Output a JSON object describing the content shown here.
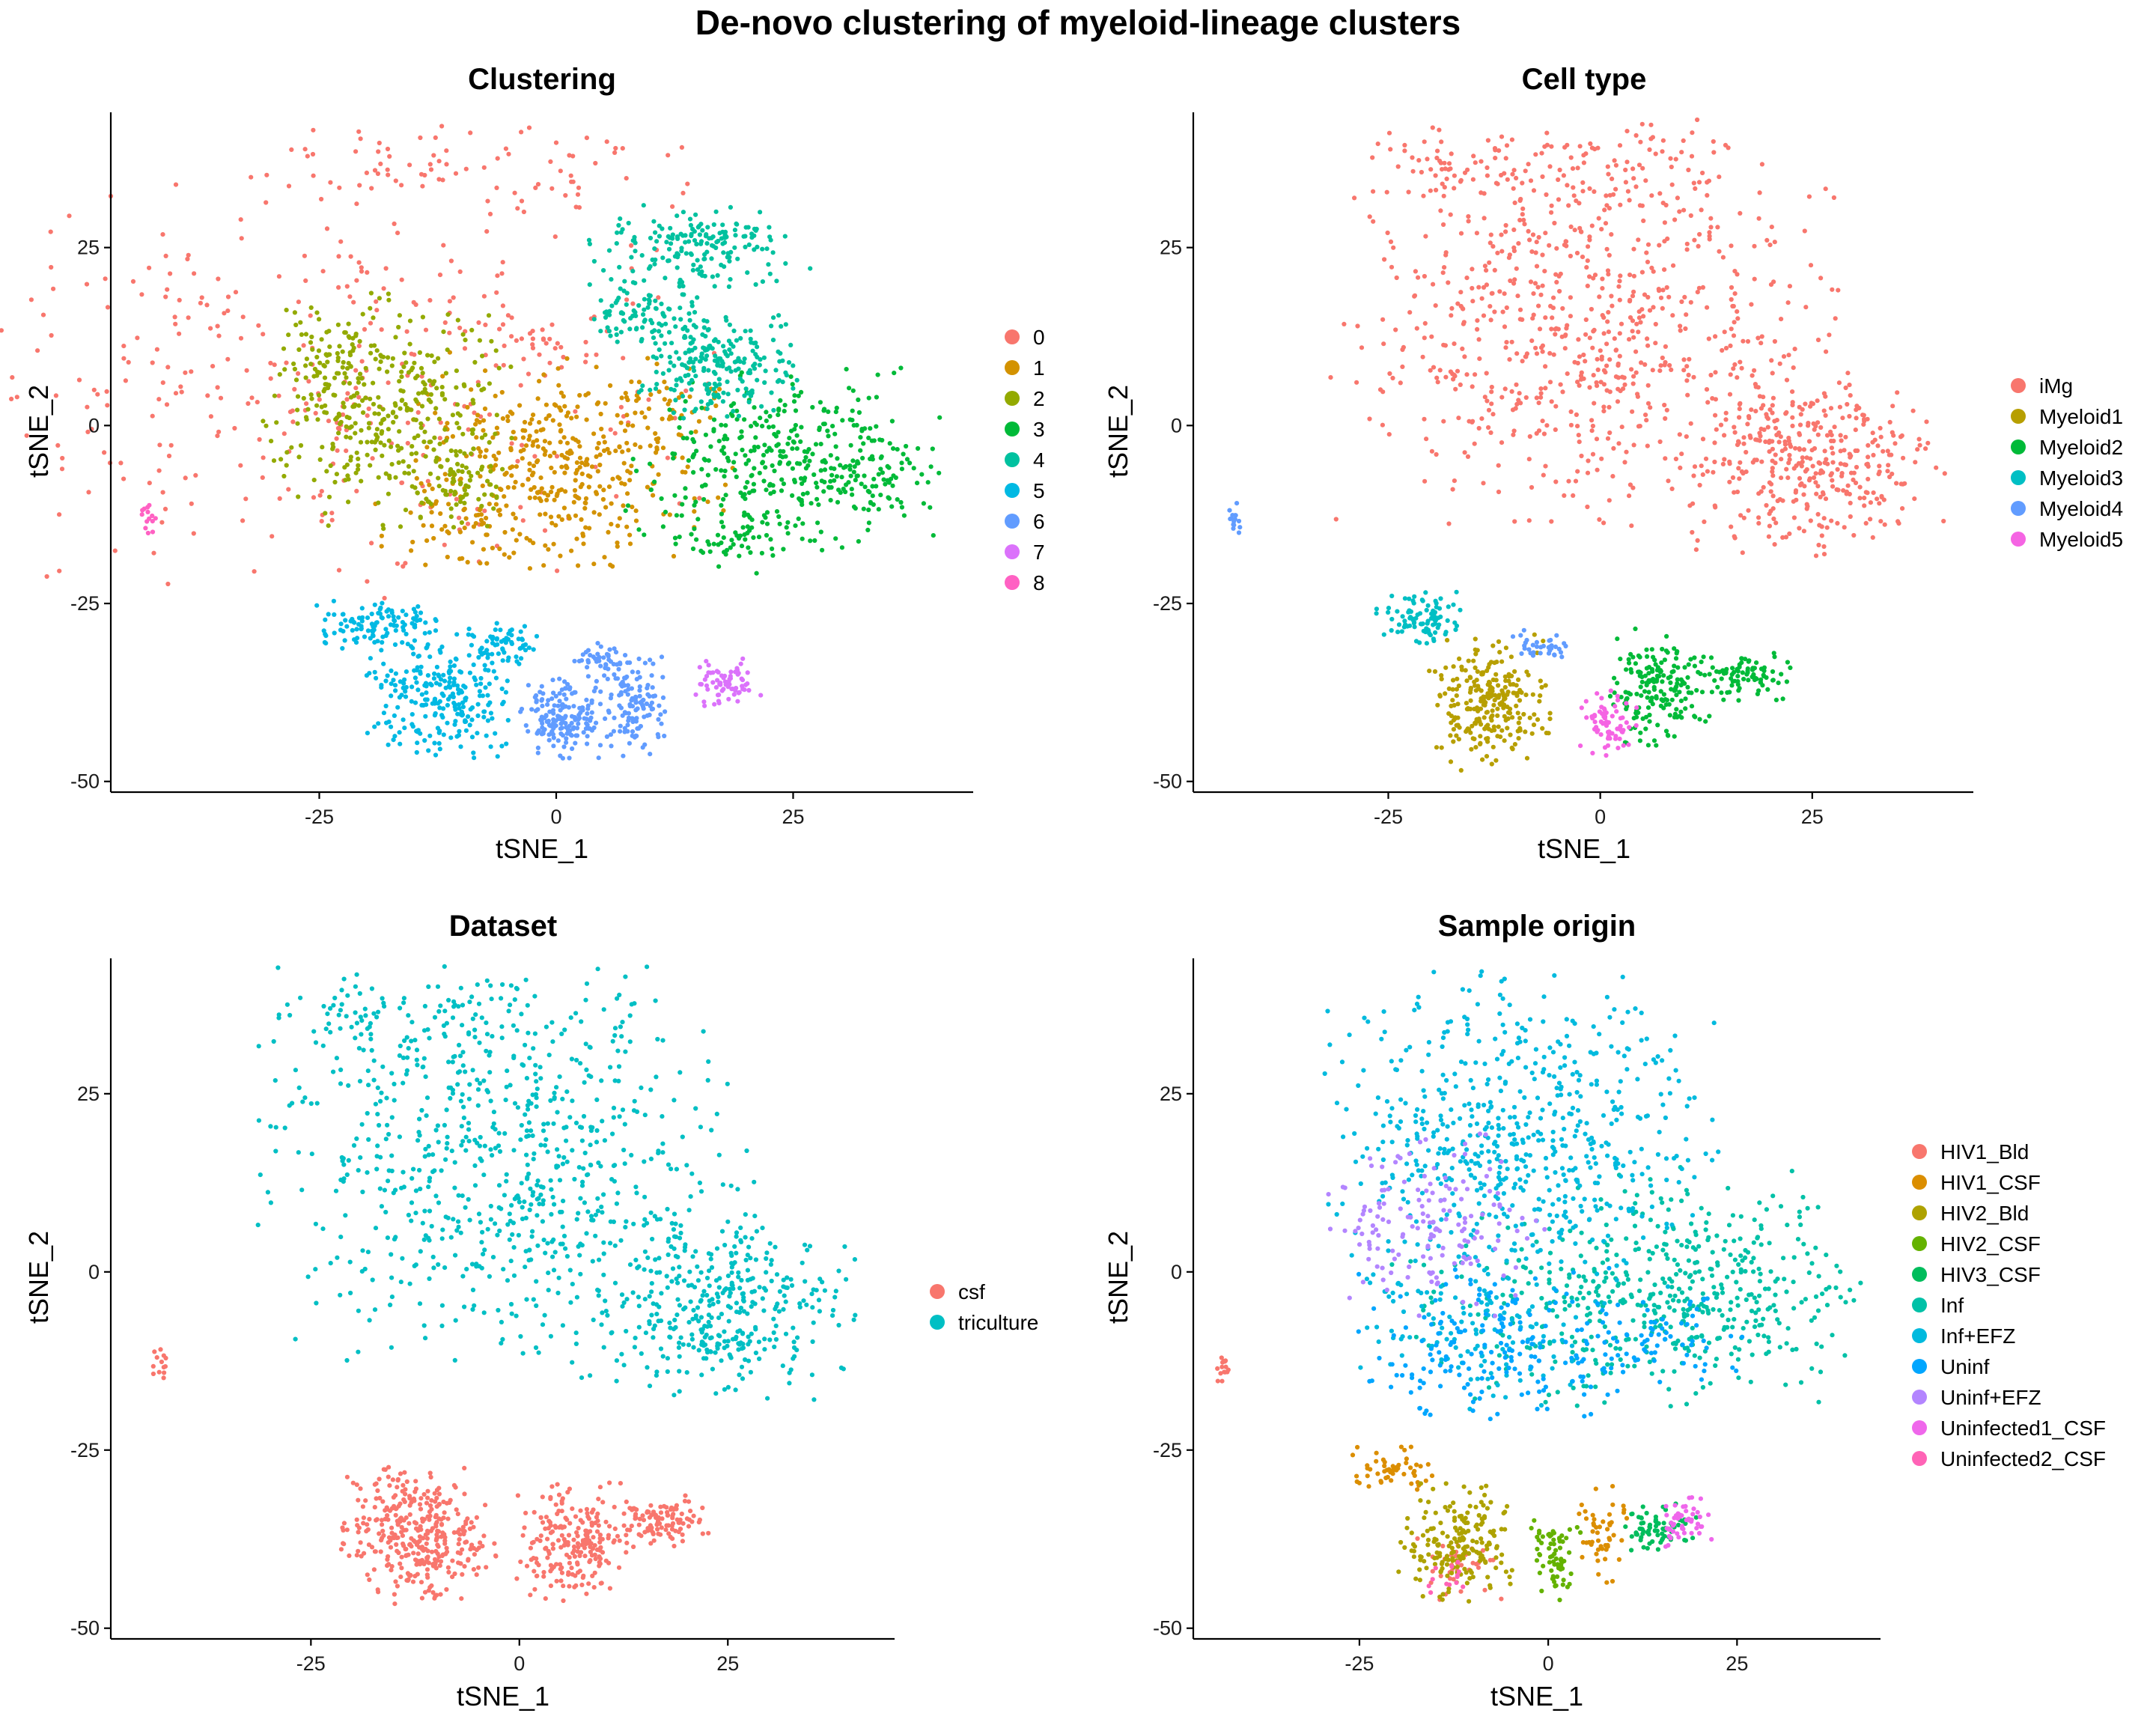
{
  "title": "De-novo clustering of myeloid-lineage clusters",
  "chart_data": [
    {
      "type": "scatter",
      "title": "Clustering",
      "xlabel": "tSNE_1",
      "ylabel": "tSNE_2",
      "xlim": [
        -47,
        44
      ],
      "ylim": [
        -51.5,
        44
      ],
      "xticks": [
        "-25",
        "0",
        "25"
      ],
      "yticks": [
        "25",
        "0",
        "-25",
        "-50"
      ],
      "legend_position": "right",
      "grid": false,
      "series": [
        {
          "name": "0",
          "color": "#F8766D",
          "regions": [
            [
              -25,
              5,
              35,
              25,
              1.0
            ],
            [
              -18,
              36,
              12,
              5,
              0.12
            ],
            [
              0,
              36,
              12,
              6,
              0.12
            ],
            [
              -2,
              12,
              8,
              4,
              0.08
            ]
          ]
        },
        {
          "name": "1",
          "color": "#D39200",
          "regions": [
            [
              1,
              -5,
              15,
              13,
              1.0
            ],
            [
              -9,
              -13,
              9,
              6,
              0.18
            ],
            [
              11,
              1,
              6,
              4,
              0.12
            ]
          ]
        },
        {
          "name": "2",
          "color": "#93AA00",
          "regions": [
            [
              -18,
              2,
              11,
              14,
              1.0
            ],
            [
              -24,
              10,
              4,
              6,
              0.15
            ],
            [
              -10,
              -8,
              5,
              6,
              0.15
            ]
          ]
        },
        {
          "name": "3",
          "color": "#00BA38",
          "regions": [
            [
              24,
              -5,
              14,
              11,
              1.0
            ],
            [
              34,
              -6,
              5,
              5,
              0.15
            ],
            [
              18,
              -16,
              5,
              4,
              0.12
            ]
          ]
        },
        {
          "name": "4",
          "color": "#00C19F",
          "regions": [
            [
              17,
              9,
              7,
              7,
              0.6
            ],
            [
              15,
              25,
              10,
              5,
              0.5
            ],
            [
              9,
              16,
              6,
              4,
              0.25
            ]
          ]
        },
        {
          "name": "5",
          "color": "#00B9E3",
          "regions": [
            [
              -12,
              -38,
              7,
              8,
              0.7
            ],
            [
              -19,
              -28,
              6,
              3,
              0.3
            ],
            [
              -5,
              -31,
              4,
              3,
              0.15
            ]
          ]
        },
        {
          "name": "6",
          "color": "#619CFF",
          "regions": [
            [
              1,
              -41,
              4,
              5,
              0.45
            ],
            [
              8,
              -38,
              3,
              7,
              0.35
            ],
            [
              5,
              -33,
              3,
              2,
              0.1
            ]
          ]
        },
        {
          "name": "7",
          "color": "#DB72FB",
          "regions": [
            [
              18,
              -36,
              3,
              3,
              0.2
            ]
          ]
        },
        {
          "name": "8",
          "color": "#FF61C3",
          "regions": [
            [
              -43,
              -13,
              0.8,
              2,
              0.04
            ]
          ]
        }
      ]
    },
    {
      "type": "scatter",
      "title": "Cell type",
      "xlabel": "tSNE_1",
      "ylabel": "tSNE_2",
      "xlim": [
        -48,
        44
      ],
      "ylim": [
        -51.5,
        44
      ],
      "xticks": [
        "-25",
        "0",
        "25"
      ],
      "yticks": [
        "25",
        "0",
        "-25",
        "-50"
      ],
      "legend_position": "right",
      "grid": false,
      "series": [
        {
          "name": "iMg",
          "color": "#F8766D",
          "regions": [
            [
              -2,
              14,
              25,
              24,
              2.0
            ],
            [
              25,
              -5,
              13,
              11,
              1.0
            ],
            [
              -18,
              36,
              12,
              5,
              0.15
            ],
            [
              0,
              36,
              12,
              6,
              0.15
            ]
          ]
        },
        {
          "name": "Myeloid1",
          "color": "#B79F00",
          "regions": [
            [
              -13,
              -39,
              6,
              8,
              0.7
            ]
          ]
        },
        {
          "name": "Myeloid2",
          "color": "#00BA38",
          "regions": [
            [
              7,
              -37,
              5,
              7,
              0.5
            ],
            [
              17,
              -35,
              5,
              3,
              0.25
            ]
          ]
        },
        {
          "name": "Myeloid3",
          "color": "#00BFC4",
          "regions": [
            [
              -21,
              -27,
              5,
              3,
              0.25
            ]
          ]
        },
        {
          "name": "Myeloid4",
          "color": "#619CFF",
          "regions": [
            [
              -43,
              -13,
              0.8,
              2,
              0.04
            ],
            [
              -7,
              -31,
              3,
              2,
              0.1
            ]
          ]
        },
        {
          "name": "Myeloid5",
          "color": "#F564E3",
          "regions": [
            [
              1,
              -42,
              3,
              4,
              0.2
            ]
          ]
        }
      ]
    },
    {
      "type": "scatter",
      "title": "Dataset",
      "xlabel": "tSNE_1",
      "ylabel": "tSNE_2",
      "xlim": [
        -49,
        45
      ],
      "ylim": [
        -51.5,
        44
      ],
      "xticks": [
        "-25",
        "0",
        "25"
      ],
      "yticks": [
        "25",
        "0",
        "-25",
        "-50"
      ],
      "legend_position": "right",
      "grid": false,
      "series": [
        {
          "name": "csf",
          "color": "#F8766D",
          "regions": [
            [
              -43,
              -13,
              0.8,
              2,
              0.04
            ],
            [
              -12,
              -37,
              8,
              8,
              1.0
            ],
            [
              6,
              -38,
              6,
              7,
              0.6
            ],
            [
              17,
              -35,
              5,
              3,
              0.3
            ]
          ]
        },
        {
          "name": "triculture",
          "color": "#00BFC4",
          "regions": [
            [
              -2,
              14,
              25,
              24,
              2.0
            ],
            [
              25,
              -5,
              13,
              11,
              1.0
            ],
            [
              -18,
              36,
              12,
              5,
              0.15
            ],
            [
              0,
              36,
              12,
              6,
              0.15
            ]
          ]
        }
      ]
    },
    {
      "type": "scatter",
      "title": "Sample origin",
      "xlabel": "tSNE_1",
      "ylabel": "tSNE_2",
      "xlim": [
        -47,
        44
      ],
      "ylim": [
        -51.5,
        44
      ],
      "xticks": [
        "-25",
        "0",
        "25"
      ],
      "yticks": [
        "25",
        "0",
        "-25",
        "-50"
      ],
      "legend_position": "right",
      "grid": false,
      "series": [
        {
          "name": "HIV1_Bld",
          "color": "#F8766D",
          "regions": [
            [
              -43,
              -13,
              0.8,
              2,
              0.04
            ],
            [
              -12,
              -42,
              5,
              4,
              0.1
            ]
          ]
        },
        {
          "name": "HIV1_CSF",
          "color": "#DB8E00",
          "regions": [
            [
              -21,
              -28,
              5,
              3,
              0.15
            ],
            [
              7,
              -37,
              3,
              6,
              0.15
            ]
          ]
        },
        {
          "name": "HIV2_Bld",
          "color": "#AEA200",
          "regions": [
            [
              -12,
              -38,
              7,
              7,
              0.55
            ]
          ]
        },
        {
          "name": "HIV2_CSF",
          "color": "#64B200",
          "regions": [
            [
              1,
              -40,
              3,
              5,
              0.2
            ]
          ]
        },
        {
          "name": "HIV3_CSF",
          "color": "#00BD5C",
          "regions": [
            [
              15,
              -36,
              4,
              3,
              0.2
            ]
          ]
        },
        {
          "name": "Inf",
          "color": "#00C1A7",
          "regions": [
            [
              20,
              -2,
              18,
              14,
              1.1
            ],
            [
              0,
              -5,
              18,
              12,
              0.4
            ]
          ]
        },
        {
          "name": "Inf+EFZ",
          "color": "#00BADE",
          "regions": [
            [
              -4,
              18,
              22,
              20,
              1.7
            ],
            [
              -10,
              -8,
              14,
              10,
              0.35
            ]
          ]
        },
        {
          "name": "Uninf",
          "color": "#00A6FF",
          "regions": [
            [
              -6,
              -10,
              16,
              9,
              0.5
            ],
            [
              15,
              -10,
              10,
              6,
              0.2
            ]
          ]
        },
        {
          "name": "Uninf+EFZ",
          "color": "#B385FF",
          "regions": [
            [
              -15,
              7,
              12,
              11,
              0.45
            ]
          ]
        },
        {
          "name": "Uninfected1_CSF",
          "color": "#EF67EB",
          "regions": [
            [
              18,
              -35,
              3,
              3,
              0.15
            ]
          ]
        },
        {
          "name": "Uninfected2_CSF",
          "color": "#FF63B6",
          "regions": [
            [
              -14,
              -43,
              3,
              2,
              0.04
            ]
          ]
        }
      ]
    }
  ]
}
